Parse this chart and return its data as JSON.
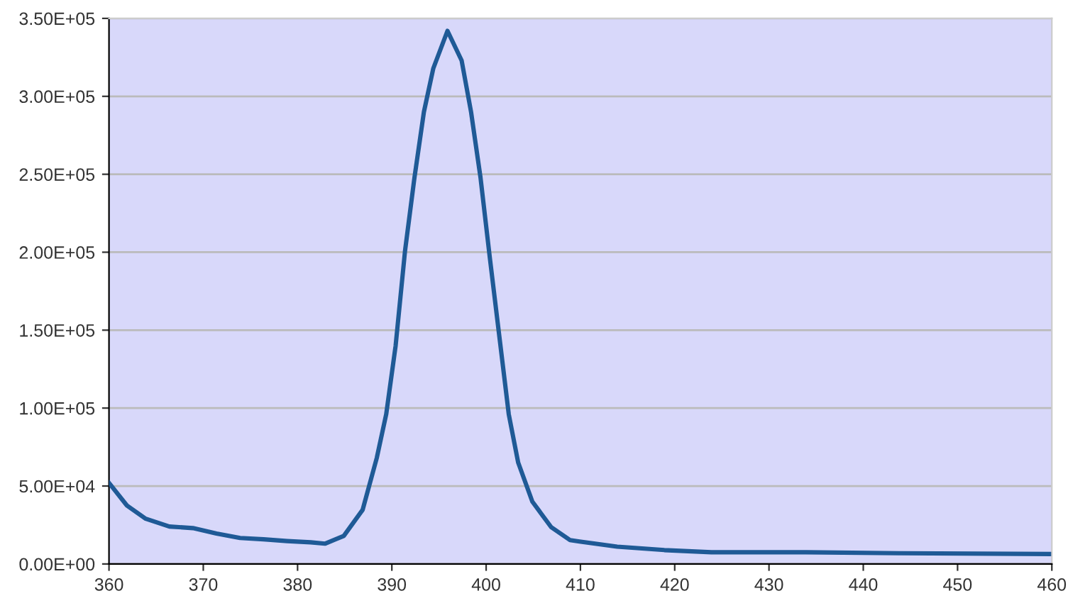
{
  "chart_data": {
    "type": "line",
    "xlim": [
      360,
      460
    ],
    "ylim": [
      0,
      350000
    ],
    "xticks": [
      360,
      370,
      380,
      390,
      400,
      410,
      420,
      430,
      440,
      450,
      460
    ],
    "yticks": [
      {
        "value": 0,
        "label": "0.00E+00"
      },
      {
        "value": 50000,
        "label": "5.00E+04"
      },
      {
        "value": 100000,
        "label": "1.00E+05"
      },
      {
        "value": 150000,
        "label": "1.50E+05"
      },
      {
        "value": 200000,
        "label": "2.00E+05"
      },
      {
        "value": 250000,
        "label": "2.50E+05"
      },
      {
        "value": 300000,
        "label": "3.00E+05"
      },
      {
        "value": 350000,
        "label": "3.50E+05"
      }
    ],
    "grid": "y",
    "marker": "none",
    "line_style": "solid",
    "series": [
      {
        "color": "#1f5a96",
        "x": [
          360,
          361.9,
          363.9,
          366.4,
          368.9,
          371.4,
          373.9,
          376.4,
          378.9,
          381.4,
          382.9,
          384.9,
          386.9,
          388.4,
          389.4,
          390.4,
          391.4,
          392.4,
          393.4,
          394.4,
          395.9,
          397.4,
          398.4,
          399.4,
          400.4,
          401.4,
          402.4,
          403.4,
          404.9,
          406.9,
          408.9,
          409.9,
          413.9,
          418.9,
          423.9,
          433.9,
          443.8,
          459.7
        ],
        "values": [
          52000,
          37500,
          29000,
          24000,
          23000,
          19500,
          16700,
          15800,
          14700,
          13900,
          13000,
          18000,
          34700,
          68000,
          96000,
          140000,
          201000,
          248000,
          290000,
          318000,
          342000,
          323000,
          290000,
          248000,
          196000,
          146000,
          96000,
          65000,
          40000,
          23600,
          15300,
          14400,
          11100,
          8900,
          7500,
          7500,
          6900,
          6400
        ]
      }
    ]
  }
}
